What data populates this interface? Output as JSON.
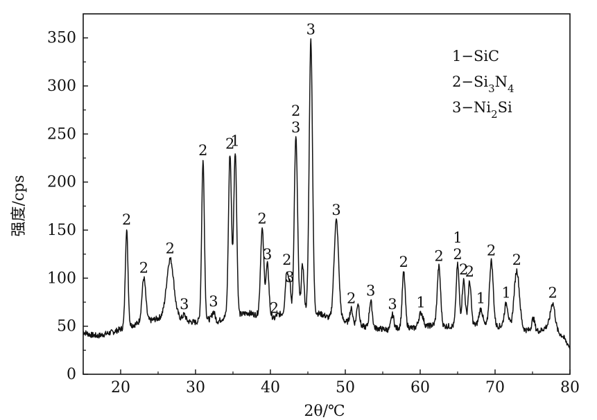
{
  "chart_data": {
    "type": "line",
    "title": "",
    "xlabel": "2θ/℃",
    "ylabel": "强度/cps",
    "xlim": [
      15,
      80
    ],
    "ylim": [
      0,
      375
    ],
    "x_ticks": [
      "20",
      "30",
      "40",
      "50",
      "60",
      "70",
      "80"
    ],
    "y_ticks": [
      "0",
      "50",
      "100",
      "150",
      "200",
      "250",
      "300",
      "350"
    ],
    "grid": false,
    "legend_position": "top-right",
    "legend": [
      {
        "id": "1",
        "text": "1−SiC"
      },
      {
        "id": "2",
        "text": "2−Si3N4"
      },
      {
        "id": "3",
        "text": "3−Ni2Si"
      }
    ],
    "baseline": [
      [
        15,
        44
      ],
      [
        16,
        41
      ],
      [
        17,
        40
      ],
      [
        18,
        42
      ],
      [
        19,
        44
      ],
      [
        20,
        47
      ],
      [
        21,
        50
      ],
      [
        22,
        52
      ],
      [
        23,
        56
      ],
      [
        24,
        56
      ],
      [
        25,
        58
      ],
      [
        26,
        62
      ],
      [
        27,
        66
      ],
      [
        28,
        58
      ],
      [
        29,
        55
      ],
      [
        30,
        54
      ],
      [
        31,
        58
      ],
      [
        32,
        57
      ],
      [
        33,
        55
      ],
      [
        34,
        60
      ],
      [
        35,
        60
      ],
      [
        36,
        62
      ],
      [
        37,
        64
      ],
      [
        38,
        62
      ],
      [
        39,
        62
      ],
      [
        40,
        60
      ],
      [
        41,
        62
      ],
      [
        42,
        64
      ],
      [
        43,
        60
      ],
      [
        44,
        66
      ],
      [
        45,
        66
      ],
      [
        46,
        64
      ],
      [
        47,
        62
      ],
      [
        48,
        58
      ],
      [
        49,
        60
      ],
      [
        50,
        55
      ],
      [
        51,
        52
      ],
      [
        52,
        50
      ],
      [
        53,
        49
      ],
      [
        54,
        48
      ],
      [
        55,
        47
      ],
      [
        56,
        46
      ],
      [
        57,
        48
      ],
      [
        58,
        50
      ],
      [
        59,
        48
      ],
      [
        60,
        48
      ],
      [
        61,
        50
      ],
      [
        62,
        52
      ],
      [
        63,
        50
      ],
      [
        64,
        50
      ],
      [
        65,
        50
      ],
      [
        66,
        52
      ],
      [
        67,
        52
      ],
      [
        68,
        50
      ],
      [
        69,
        50
      ],
      [
        70,
        50
      ],
      [
        71,
        50
      ],
      [
        72,
        48
      ],
      [
        73,
        48
      ],
      [
        74,
        46
      ],
      [
        75,
        46
      ],
      [
        76,
        45
      ],
      [
        77,
        50
      ],
      [
        78,
        46
      ],
      [
        79,
        40
      ],
      [
        80,
        28
      ]
    ],
    "peaks": [
      {
        "x": 20.8,
        "y": 150,
        "w": 0.18,
        "label": "2"
      },
      {
        "x": 23.1,
        "y": 100,
        "w": 0.25,
        "label": "2"
      },
      {
        "x": 26.6,
        "y": 120,
        "w": 0.45,
        "label": "2"
      },
      {
        "x": 28.5,
        "y": 62,
        "w": 0.2,
        "label": "3"
      },
      {
        "x": 31.0,
        "y": 222,
        "w": 0.18,
        "label": "2"
      },
      {
        "x": 32.4,
        "y": 65,
        "w": 0.2,
        "label": "3"
      },
      {
        "x": 34.6,
        "y": 229,
        "w": 0.2,
        "label": "2"
      },
      {
        "x": 35.3,
        "y": 232,
        "w": 0.2,
        "label": "1"
      },
      {
        "x": 38.9,
        "y": 151,
        "w": 0.22,
        "label": "2"
      },
      {
        "x": 39.6,
        "y": 114,
        "w": 0.2,
        "label": "3"
      },
      {
        "x": 40.5,
        "y": 58,
        "w": 0.15,
        "label": "2"
      },
      {
        "x": 42.2,
        "y": 108,
        "w": 0.2,
        "label": "2"
      },
      {
        "x": 42.6,
        "y": 90,
        "w": 0.15,
        "label": "3"
      },
      {
        "x": 43.4,
        "y": 246,
        "w": 0.22,
        "label": "2 3"
      },
      {
        "x": 44.3,
        "y": 114,
        "w": 0.18,
        "label": ""
      },
      {
        "x": 45.4,
        "y": 348,
        "w": 0.22,
        "label": "3"
      },
      {
        "x": 48.8,
        "y": 160,
        "w": 0.3,
        "label": "3"
      },
      {
        "x": 50.8,
        "y": 68,
        "w": 0.2,
        "label": "2"
      },
      {
        "x": 51.7,
        "y": 74,
        "w": 0.18,
        "label": ""
      },
      {
        "x": 53.4,
        "y": 76,
        "w": 0.2,
        "label": "3"
      },
      {
        "x": 56.3,
        "y": 62,
        "w": 0.2,
        "label": "3"
      },
      {
        "x": 57.8,
        "y": 106,
        "w": 0.2,
        "label": "2"
      },
      {
        "x": 60.1,
        "y": 64,
        "w": 0.3,
        "label": "1"
      },
      {
        "x": 62.5,
        "y": 112,
        "w": 0.22,
        "label": "2"
      },
      {
        "x": 65.0,
        "y": 114,
        "w": 0.2,
        "label": "1 2"
      },
      {
        "x": 65.8,
        "y": 98,
        "w": 0.2,
        "label": "2"
      },
      {
        "x": 66.6,
        "y": 96,
        "w": 0.2,
        "label": "2"
      },
      {
        "x": 68.1,
        "y": 68,
        "w": 0.25,
        "label": "1"
      },
      {
        "x": 69.5,
        "y": 118,
        "w": 0.25,
        "label": "2"
      },
      {
        "x": 71.5,
        "y": 74,
        "w": 0.25,
        "label": "1"
      },
      {
        "x": 72.9,
        "y": 108,
        "w": 0.35,
        "label": "2"
      },
      {
        "x": 75.1,
        "y": 58,
        "w": 0.2,
        "label": ""
      },
      {
        "x": 77.7,
        "y": 74,
        "w": 0.3,
        "label": "2"
      }
    ]
  }
}
